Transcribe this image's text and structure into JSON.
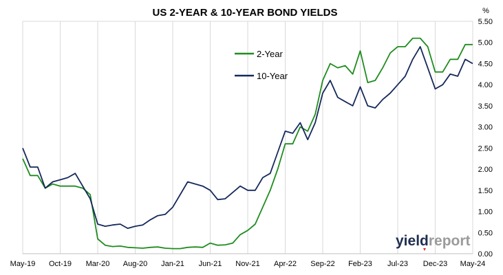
{
  "chart_data": {
    "type": "line",
    "title": "US 2-YEAR & 10-YEAR BOND YIELDS",
    "y_unit": "%",
    "ylim": [
      0,
      5.5
    ],
    "y_ticks": [
      "0.00",
      "0.50",
      "1.00",
      "1.50",
      "2.00",
      "2.50",
      "3.00",
      "3.50",
      "4.00",
      "4.50",
      "5.00",
      "5.50"
    ],
    "y_tick_values": [
      0,
      0.5,
      1,
      1.5,
      2,
      2.5,
      3,
      3.5,
      4,
      4.5,
      5,
      5.5
    ],
    "x_ticks": [
      "May-19",
      "Oct-19",
      "Mar-20",
      "Aug-20",
      "Jan-21",
      "Jun-21",
      "Nov-21",
      "Apr-22",
      "Sep-22",
      "Feb-23",
      "Jul-23",
      "Dec-23",
      "May-24"
    ],
    "xlim": [
      "2019-05",
      "2024-05"
    ],
    "grid": "vertical",
    "legend_position": "top-center",
    "y_axis_side": "right",
    "series": [
      {
        "name": "2-Year",
        "color": "#1e8c1e",
        "x": [
          "2019-05",
          "2019-06",
          "2019-07",
          "2019-08",
          "2019-09",
          "2019-10",
          "2019-11",
          "2019-12",
          "2020-01",
          "2020-02",
          "2020-03",
          "2020-04",
          "2020-05",
          "2020-06",
          "2020-07",
          "2020-08",
          "2020-09",
          "2020-10",
          "2020-11",
          "2020-12",
          "2021-01",
          "2021-02",
          "2021-03",
          "2021-04",
          "2021-05",
          "2021-06",
          "2021-07",
          "2021-08",
          "2021-09",
          "2021-10",
          "2021-11",
          "2021-12",
          "2022-01",
          "2022-02",
          "2022-03",
          "2022-04",
          "2022-05",
          "2022-06",
          "2022-07",
          "2022-08",
          "2022-09",
          "2022-10",
          "2022-11",
          "2022-12",
          "2023-01",
          "2023-02",
          "2023-03",
          "2023-04",
          "2023-05",
          "2023-06",
          "2023-07",
          "2023-08",
          "2023-09",
          "2023-10",
          "2023-11",
          "2023-12",
          "2024-01",
          "2024-02",
          "2024-03",
          "2024-04",
          "2024-05"
        ],
        "values": [
          2.25,
          1.85,
          1.85,
          1.55,
          1.65,
          1.6,
          1.6,
          1.6,
          1.55,
          1.4,
          0.35,
          0.2,
          0.17,
          0.18,
          0.15,
          0.14,
          0.13,
          0.15,
          0.16,
          0.13,
          0.12,
          0.12,
          0.15,
          0.16,
          0.15,
          0.25,
          0.2,
          0.21,
          0.25,
          0.45,
          0.55,
          0.7,
          1.1,
          1.5,
          2.0,
          2.6,
          2.6,
          3.0,
          2.9,
          3.3,
          4.1,
          4.5,
          4.4,
          4.45,
          4.25,
          4.8,
          4.05,
          4.1,
          4.4,
          4.75,
          4.9,
          4.9,
          5.1,
          5.1,
          4.9,
          4.3,
          4.3,
          4.6,
          4.6,
          4.95,
          4.95
        ]
      },
      {
        "name": "10-Year",
        "color": "#14285a",
        "x": [
          "2019-05",
          "2019-06",
          "2019-07",
          "2019-08",
          "2019-09",
          "2019-10",
          "2019-11",
          "2019-12",
          "2020-01",
          "2020-02",
          "2020-03",
          "2020-04",
          "2020-05",
          "2020-06",
          "2020-07",
          "2020-08",
          "2020-09",
          "2020-10",
          "2020-11",
          "2020-12",
          "2021-01",
          "2021-02",
          "2021-03",
          "2021-04",
          "2021-05",
          "2021-06",
          "2021-07",
          "2021-08",
          "2021-09",
          "2021-10",
          "2021-11",
          "2021-12",
          "2022-01",
          "2022-02",
          "2022-03",
          "2022-04",
          "2022-05",
          "2022-06",
          "2022-07",
          "2022-08",
          "2022-09",
          "2022-10",
          "2022-11",
          "2022-12",
          "2023-01",
          "2023-02",
          "2023-03",
          "2023-04",
          "2023-05",
          "2023-06",
          "2023-07",
          "2023-08",
          "2023-09",
          "2023-10",
          "2023-11",
          "2023-12",
          "2024-01",
          "2024-02",
          "2024-03",
          "2024-04",
          "2024-05"
        ],
        "values": [
          2.5,
          2.05,
          2.05,
          1.55,
          1.7,
          1.75,
          1.8,
          1.9,
          1.6,
          1.3,
          0.7,
          0.65,
          0.68,
          0.7,
          0.6,
          0.65,
          0.68,
          0.8,
          0.9,
          0.93,
          1.1,
          1.4,
          1.7,
          1.65,
          1.6,
          1.5,
          1.28,
          1.3,
          1.45,
          1.6,
          1.5,
          1.5,
          1.8,
          1.9,
          2.4,
          2.9,
          2.85,
          3.1,
          2.7,
          3.1,
          3.8,
          4.1,
          3.7,
          3.6,
          3.5,
          3.95,
          3.5,
          3.45,
          3.65,
          3.8,
          4.0,
          4.2,
          4.6,
          4.9,
          4.4,
          3.9,
          4.0,
          4.25,
          4.2,
          4.6,
          4.5
        ]
      }
    ]
  },
  "branding": {
    "part1": "yield",
    "part2": "report"
  }
}
